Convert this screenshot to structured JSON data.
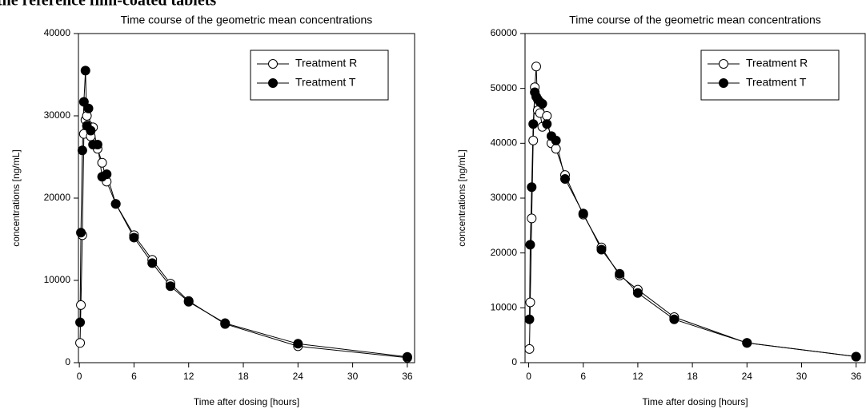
{
  "heading": "the reference film-coated tablets",
  "chart_data": [
    {
      "type": "line",
      "title": "Time course of the geometric mean concentrations",
      "x_label": "Time after dosing [hours]",
      "y_label": "concentrations [ng/mL]",
      "x": [
        0.08,
        0.17,
        0.33,
        0.5,
        0.67,
        0.83,
        1,
        1.25,
        1.5,
        2,
        2.5,
        3,
        4,
        6,
        8,
        10,
        12,
        16,
        24,
        36
      ],
      "series": [
        {
          "name": "Treatment R",
          "color": "#000000",
          "marker": "open",
          "values": [
            2400,
            7000,
            15500,
            27800,
            29500,
            30000,
            28800,
            27500,
            28600,
            26000,
            24300,
            22000,
            19300,
            15500,
            12500,
            9600,
            7500,
            4700,
            2000,
            600
          ]
        },
        {
          "name": "Treatment T",
          "color": "#000000",
          "marker": "filled",
          "values": [
            4900,
            15800,
            25800,
            31700,
            35500,
            28800,
            30900,
            28200,
            26500,
            26500,
            22600,
            22900,
            19300,
            15200,
            12100,
            9300,
            7400,
            4800,
            2300,
            700
          ]
        }
      ],
      "xlim": [
        -0.1,
        36.8
      ],
      "xticks": [
        0,
        6,
        12,
        18,
        24,
        30,
        36
      ],
      "ylim": [
        0,
        40000
      ],
      "yticks": [
        0,
        10000,
        20000,
        30000,
        40000
      ],
      "legend": "upper right"
    },
    {
      "type": "line",
      "title": "Time course of the geometric mean concentrations",
      "x_label": "Time after dosing [hours]",
      "y_label": "concentrations [ng/mL]",
      "x": [
        0.08,
        0.17,
        0.33,
        0.5,
        0.67,
        0.83,
        1,
        1.25,
        1.5,
        2,
        2.5,
        3,
        4,
        6,
        8,
        10,
        12,
        16,
        24,
        36
      ],
      "series": [
        {
          "name": "Treatment R",
          "color": "#000000",
          "marker": "open",
          "values": [
            2500,
            11000,
            26300,
            40500,
            50200,
            54000,
            46000,
            45500,
            43000,
            45000,
            40000,
            39000,
            34200,
            27000,
            21000,
            15900,
            13300,
            8300,
            3600,
            1100
          ]
        },
        {
          "name": "Treatment T",
          "color": "#000000",
          "marker": "filled",
          "values": [
            7900,
            21500,
            32000,
            43500,
            49300,
            48500,
            48000,
            47500,
            47200,
            43500,
            41300,
            40500,
            33500,
            27200,
            20600,
            16200,
            12700,
            7900,
            3600,
            1100
          ]
        }
      ],
      "xlim": [
        -0.4,
        37
      ],
      "xticks": [
        0,
        6,
        12,
        18,
        24,
        30,
        36
      ],
      "ylim": [
        0,
        60000
      ],
      "yticks": [
        0,
        10000,
        20000,
        30000,
        40000,
        50000,
        60000
      ],
      "legend": "upper right"
    }
  ]
}
